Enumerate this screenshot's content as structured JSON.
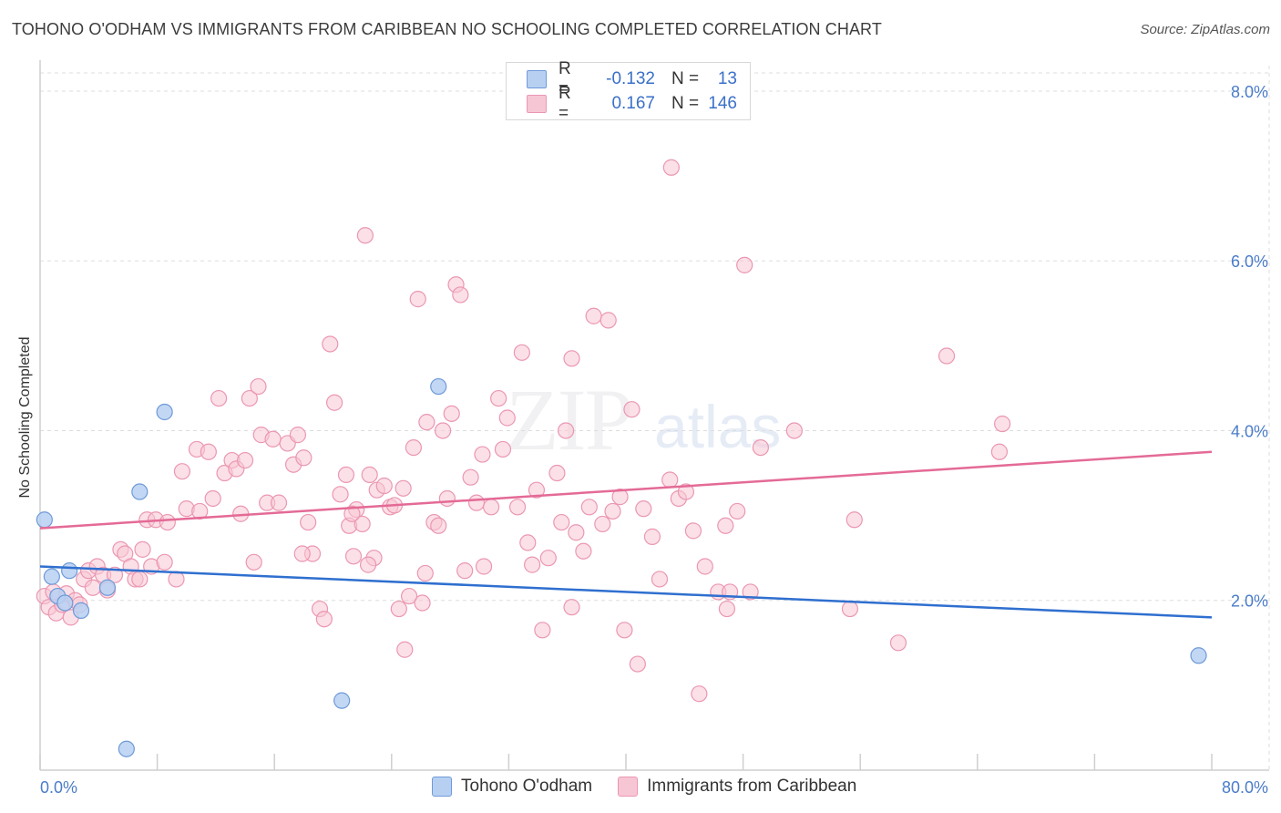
{
  "header": {
    "title": "TOHONO O'ODHAM VS IMMIGRANTS FROM CARIBBEAN NO SCHOOLING COMPLETED CORRELATION CHART",
    "source": "Source: ZipAtlas.com"
  },
  "watermark": {
    "zip": "ZIP",
    "atlas": "atlas"
  },
  "legend": {
    "rows": [
      {
        "r_label": "R =",
        "r_value": "-0.132",
        "n_label": "N =",
        "n_value": "13"
      },
      {
        "r_label": "R =",
        "r_value": "0.167",
        "n_label": "N =",
        "n_value": "146"
      }
    ]
  },
  "bottom_legend": {
    "series1": "Tohono O'odham",
    "series2": "Immigrants from Caribbean"
  },
  "colors": {
    "blue_fill": "#b7d0f2",
    "blue_stroke": "#6f9ad8",
    "blue_line": "#2f6fcf",
    "pink_fill": "#f7c6d4",
    "pink_stroke": "#eb97b2",
    "pink_line": "#e46a96",
    "tick_text": "#4a7cc9",
    "grid": "#dddddd"
  },
  "chart_data": {
    "type": "scatter",
    "title": "TOHONO O'ODHAM VS IMMIGRANTS FROM CARIBBEAN NO SCHOOLING COMPLETED CORRELATION CHART",
    "xlabel": "",
    "ylabel": "No Schooling Completed",
    "xlim": [
      0,
      80
    ],
    "ylim": [
      0,
      8.3
    ],
    "x_tick_labels": [
      "0.0%",
      "80.0%"
    ],
    "y_ticks": [
      2,
      4,
      6,
      8
    ],
    "y_tick_labels": [
      "2.0%",
      "4.0%",
      "6.0%",
      "8.0%"
    ],
    "grid": true,
    "legend_position": "top-center",
    "series": [
      {
        "name": "Tohono O'odham",
        "color": "blue",
        "points": [
          [
            0.3,
            2.95
          ],
          [
            0.8,
            2.28
          ],
          [
            1.2,
            2.05
          ],
          [
            1.7,
            1.97
          ],
          [
            2.0,
            2.35
          ],
          [
            2.8,
            1.88
          ],
          [
            4.6,
            2.15
          ],
          [
            6.8,
            3.28
          ],
          [
            8.5,
            4.22
          ],
          [
            27.2,
            4.52
          ],
          [
            20.6,
            0.82
          ],
          [
            5.9,
            0.25
          ],
          [
            79.1,
            1.35
          ]
        ],
        "trend": {
          "x": [
            0,
            80
          ],
          "y": [
            2.4,
            1.8
          ]
        }
      },
      {
        "name": "Immigrants from Caribbean",
        "color": "pink",
        "points": [
          [
            0.3,
            2.05
          ],
          [
            0.6,
            1.92
          ],
          [
            0.9,
            2.1
          ],
          [
            1.1,
            1.85
          ],
          [
            1.5,
            1.95
          ],
          [
            1.8,
            2.08
          ],
          [
            2.1,
            1.8
          ],
          [
            2.4,
            2.0
          ],
          [
            2.7,
            1.95
          ],
          [
            3.0,
            2.25
          ],
          [
            3.3,
            2.35
          ],
          [
            3.6,
            2.15
          ],
          [
            3.9,
            2.4
          ],
          [
            4.3,
            2.3
          ],
          [
            4.6,
            2.12
          ],
          [
            5.1,
            2.3
          ],
          [
            5.5,
            2.6
          ],
          [
            5.8,
            2.55
          ],
          [
            6.2,
            2.4
          ],
          [
            6.5,
            2.25
          ],
          [
            6.8,
            2.25
          ],
          [
            7.0,
            2.6
          ],
          [
            7.3,
            2.95
          ],
          [
            7.6,
            2.4
          ],
          [
            7.9,
            2.95
          ],
          [
            8.5,
            2.45
          ],
          [
            8.7,
            2.92
          ],
          [
            9.3,
            2.25
          ],
          [
            9.7,
            3.52
          ],
          [
            10.0,
            3.08
          ],
          [
            10.7,
            3.78
          ],
          [
            10.9,
            3.05
          ],
          [
            11.5,
            3.75
          ],
          [
            11.8,
            3.2
          ],
          [
            12.2,
            4.38
          ],
          [
            12.6,
            3.5
          ],
          [
            13.1,
            3.65
          ],
          [
            13.4,
            3.55
          ],
          [
            13.7,
            3.02
          ],
          [
            14.0,
            3.65
          ],
          [
            14.3,
            4.38
          ],
          [
            14.6,
            2.45
          ],
          [
            14.9,
            4.52
          ],
          [
            15.1,
            3.95
          ],
          [
            15.5,
            3.15
          ],
          [
            15.9,
            3.9
          ],
          [
            16.3,
            3.15
          ],
          [
            16.9,
            3.85
          ],
          [
            17.3,
            3.6
          ],
          [
            17.6,
            3.95
          ],
          [
            18.0,
            3.68
          ],
          [
            18.3,
            2.92
          ],
          [
            18.6,
            2.55
          ],
          [
            19.1,
            1.9
          ],
          [
            19.4,
            1.78
          ],
          [
            19.8,
            5.02
          ],
          [
            20.1,
            4.33
          ],
          [
            20.5,
            3.25
          ],
          [
            20.9,
            3.48
          ],
          [
            21.1,
            2.88
          ],
          [
            21.4,
            2.52
          ],
          [
            21.6,
            3.07
          ],
          [
            22.0,
            2.9
          ],
          [
            22.2,
            6.3
          ],
          [
            22.5,
            3.48
          ],
          [
            22.8,
            2.5
          ],
          [
            23.0,
            3.3
          ],
          [
            23.5,
            3.35
          ],
          [
            23.9,
            3.1
          ],
          [
            24.2,
            3.12
          ],
          [
            24.5,
            1.9
          ],
          [
            24.9,
            1.42
          ],
          [
            25.2,
            2.05
          ],
          [
            25.5,
            3.8
          ],
          [
            25.8,
            5.55
          ],
          [
            26.1,
            1.97
          ],
          [
            26.4,
            4.1
          ],
          [
            26.9,
            2.92
          ],
          [
            27.2,
            2.88
          ],
          [
            27.5,
            4.0
          ],
          [
            27.8,
            3.2
          ],
          [
            28.1,
            4.2
          ],
          [
            28.4,
            5.72
          ],
          [
            28.7,
            5.6
          ],
          [
            29.0,
            2.35
          ],
          [
            29.4,
            3.45
          ],
          [
            29.8,
            3.15
          ],
          [
            30.2,
            3.72
          ],
          [
            30.8,
            3.1
          ],
          [
            31.3,
            4.38
          ],
          [
            31.6,
            3.78
          ],
          [
            31.9,
            4.15
          ],
          [
            32.6,
            3.1
          ],
          [
            32.9,
            4.92
          ],
          [
            33.3,
            2.68
          ],
          [
            33.9,
            3.3
          ],
          [
            34.3,
            1.65
          ],
          [
            34.7,
            2.5
          ],
          [
            35.3,
            3.5
          ],
          [
            35.6,
            2.92
          ],
          [
            35.9,
            4.0
          ],
          [
            36.3,
            4.85
          ],
          [
            36.6,
            2.8
          ],
          [
            37.1,
            2.58
          ],
          [
            37.5,
            3.1
          ],
          [
            37.8,
            5.35
          ],
          [
            38.4,
            2.9
          ],
          [
            38.8,
            5.3
          ],
          [
            39.1,
            3.05
          ],
          [
            39.6,
            3.22
          ],
          [
            39.9,
            1.65
          ],
          [
            40.4,
            4.25
          ],
          [
            40.8,
            1.25
          ],
          [
            41.2,
            3.08
          ],
          [
            41.8,
            2.75
          ],
          [
            42.3,
            2.25
          ],
          [
            43.0,
            3.42
          ],
          [
            43.6,
            3.2
          ],
          [
            44.1,
            3.28
          ],
          [
            44.6,
            2.82
          ],
          [
            45.0,
            0.9
          ],
          [
            45.4,
            2.4
          ],
          [
            46.3,
            2.1
          ],
          [
            46.8,
            2.88
          ],
          [
            47.1,
            2.1
          ],
          [
            47.6,
            3.05
          ],
          [
            48.1,
            5.95
          ],
          [
            48.5,
            2.1
          ],
          [
            49.2,
            3.8
          ],
          [
            51.5,
            4.0
          ],
          [
            55.3,
            1.9
          ],
          [
            55.6,
            2.95
          ],
          [
            58.6,
            1.5
          ],
          [
            61.9,
            4.88
          ],
          [
            65.7,
            4.08
          ],
          [
            65.5,
            3.75
          ],
          [
            43.1,
            7.1
          ],
          [
            36.3,
            1.92
          ],
          [
            46.9,
            1.9
          ],
          [
            30.3,
            2.4
          ],
          [
            26.3,
            2.32
          ],
          [
            33.6,
            2.42
          ],
          [
            21.3,
            3.02
          ],
          [
            17.9,
            2.55
          ],
          [
            22.4,
            2.42
          ],
          [
            24.8,
            3.32
          ]
        ],
        "trend": {
          "x": [
            0,
            80
          ],
          "y": [
            2.85,
            3.75
          ]
        }
      }
    ]
  }
}
